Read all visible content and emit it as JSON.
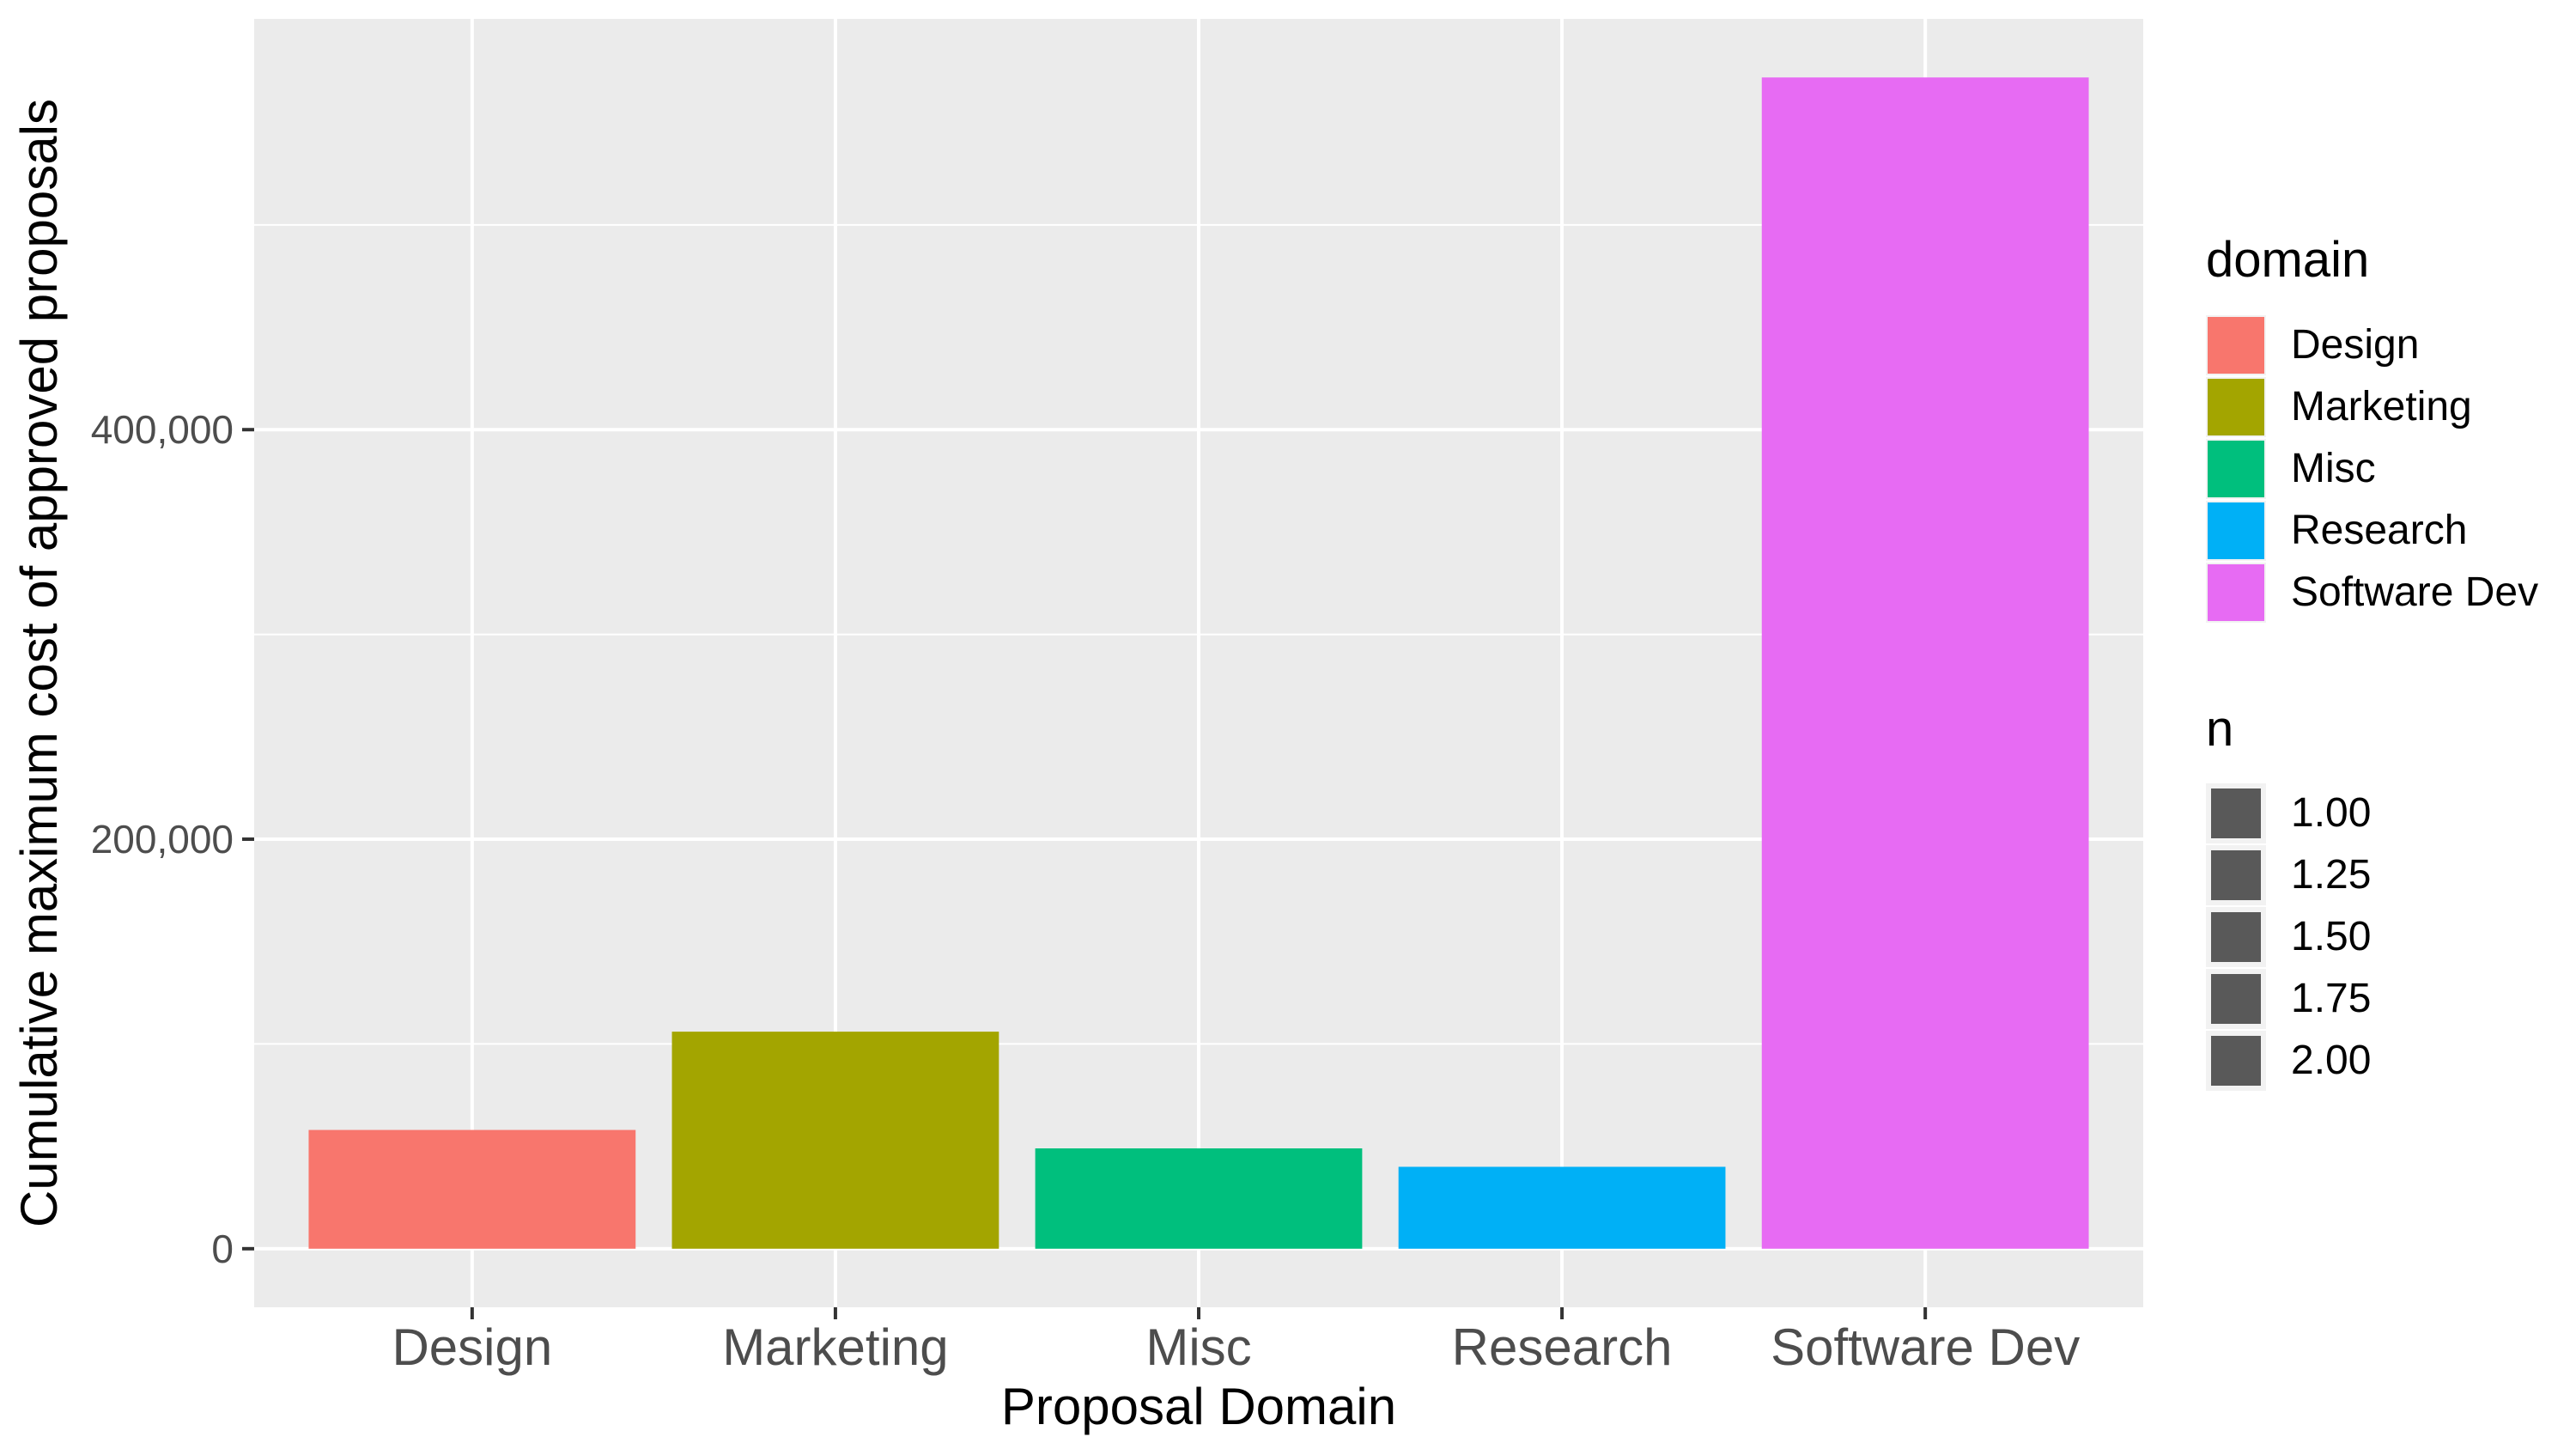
{
  "chart_data": {
    "type": "bar",
    "xlabel": "Proposal Domain",
    "ylabel": "Cumulative maximum cost of approved proposals",
    "categories": [
      "Design",
      "Marketing",
      "Misc",
      "Research",
      "Software Dev"
    ],
    "values": [
      58000,
      106000,
      49000,
      40000,
      572000
    ],
    "colors": [
      "#F8766D",
      "#A3A500",
      "#00BF7D",
      "#00B0F6",
      "#E76BF3"
    ],
    "ylim": [
      -28600,
      600600
    ],
    "y_ticks": [
      0,
      200000,
      400000
    ],
    "y_tick_labels": [
      "0",
      "200,000",
      "400,000"
    ],
    "y_minor_ticks": [
      100000,
      300000,
      500000
    ],
    "grid": true,
    "panel_background": "#EBEBEB",
    "legend_position": "right",
    "legends": [
      {
        "title": "domain",
        "entries": [
          "Design",
          "Marketing",
          "Misc",
          "Research",
          "Software Dev"
        ],
        "colors": [
          "#F8766D",
          "#A3A500",
          "#00BF7D",
          "#00B0F6",
          "#E76BF3"
        ]
      },
      {
        "title": "n",
        "entries": [
          "1.00",
          "1.25",
          "1.50",
          "1.75",
          "2.00"
        ],
        "color": "#595959"
      }
    ]
  }
}
